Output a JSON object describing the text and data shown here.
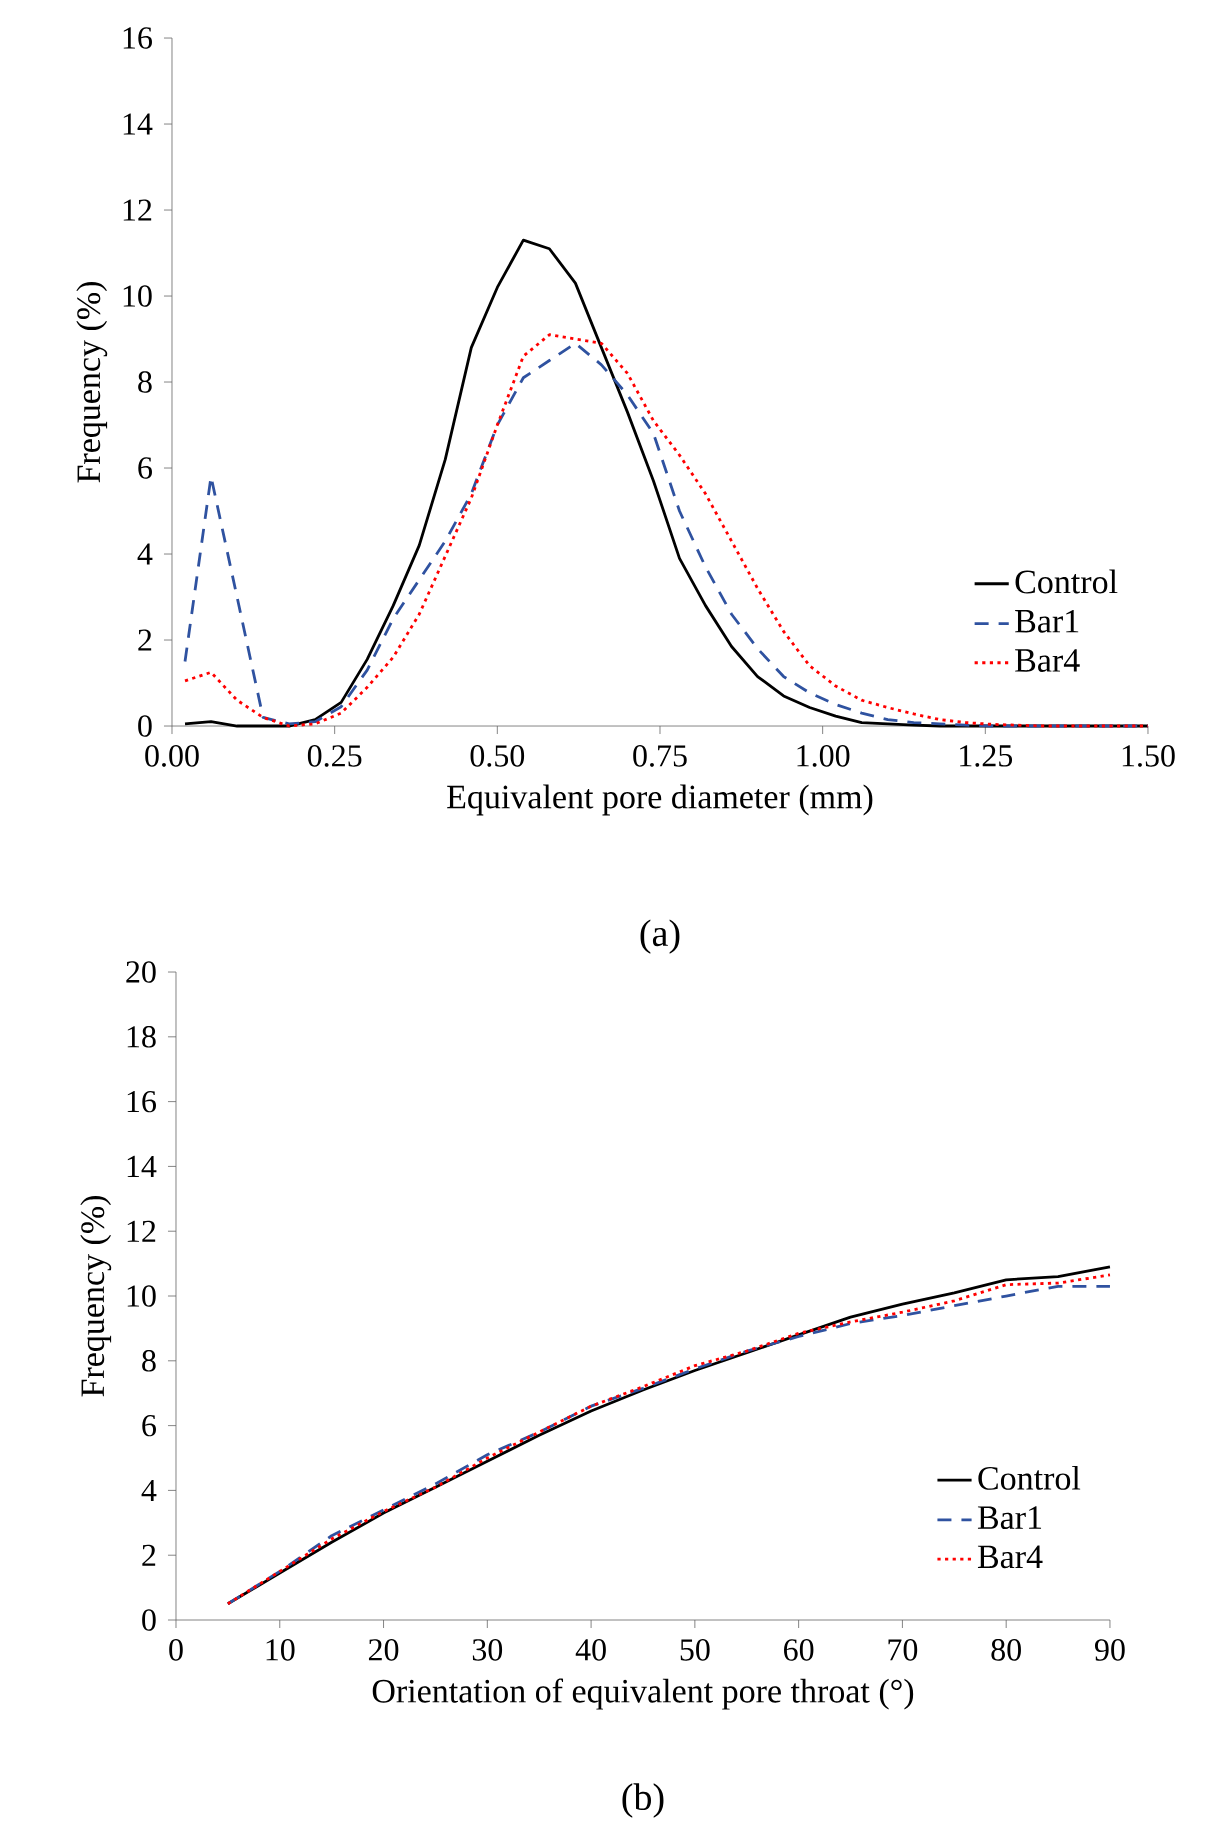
{
  "chart_data": [
    {
      "type": "line",
      "xlabel": "Equivalent pore diameter (mm)",
      "ylabel": "Frequency (%)",
      "annotations": [
        "(a)"
      ],
      "x": [
        0.02,
        0.06,
        0.1,
        0.14,
        0.18,
        0.22,
        0.26,
        0.3,
        0.34,
        0.38,
        0.42,
        0.46,
        0.5,
        0.54,
        0.58,
        0.62,
        0.66,
        0.7,
        0.74,
        0.78,
        0.82,
        0.86,
        0.9,
        0.94,
        0.98,
        1.02,
        1.06,
        1.1,
        1.14,
        1.18,
        1.22,
        1.26,
        1.3,
        1.34,
        1.38,
        1.42,
        1.46,
        1.5
      ],
      "series": [
        {
          "name": "Control",
          "color": "#000000",
          "line_style": "solid",
          "values": [
            0.05,
            0.1,
            0.0,
            0.0,
            0.0,
            0.15,
            0.55,
            1.55,
            2.8,
            4.2,
            6.2,
            8.8,
            10.2,
            11.3,
            11.1,
            10.3,
            8.8,
            7.3,
            5.7,
            3.9,
            2.8,
            1.85,
            1.15,
            0.7,
            0.43,
            0.23,
            0.08,
            0.05,
            0.02,
            0.0,
            0.0,
            0.0,
            0.0,
            0.0,
            0.0,
            0.0,
            0.0,
            0.0
          ]
        },
        {
          "name": "Bar1",
          "color": "#2f52a0",
          "line_style": "dashed",
          "values": [
            1.5,
            5.8,
            3.0,
            0.2,
            0.05,
            0.1,
            0.45,
            1.3,
            2.5,
            3.4,
            4.3,
            5.4,
            7.0,
            8.1,
            8.5,
            8.9,
            8.4,
            7.7,
            6.8,
            5.0,
            3.7,
            2.6,
            1.8,
            1.15,
            0.77,
            0.5,
            0.3,
            0.15,
            0.08,
            0.05,
            0.02,
            0.0,
            0.0,
            0.0,
            0.0,
            0.0,
            0.0,
            0.0
          ]
        },
        {
          "name": "Bar4",
          "color": "#ff0000",
          "line_style": "dotted",
          "values": [
            1.05,
            1.25,
            0.6,
            0.2,
            0.0,
            0.05,
            0.3,
            0.9,
            1.6,
            2.6,
            3.95,
            5.3,
            7.0,
            8.6,
            9.1,
            9.0,
            8.9,
            8.2,
            7.1,
            6.3,
            5.4,
            4.3,
            3.2,
            2.2,
            1.4,
            0.93,
            0.6,
            0.43,
            0.28,
            0.15,
            0.08,
            0.04,
            0.02,
            0.0,
            0.0,
            0.0,
            0.0,
            0.0
          ]
        }
      ],
      "xlim": [
        0,
        1.5
      ],
      "ylim": [
        0,
        16
      ],
      "xticks": [
        {
          "value": 0,
          "label": "0.00"
        },
        {
          "value": 0.25,
          "label": "0.25"
        },
        {
          "value": 0.5,
          "label": "0.50"
        },
        {
          "value": 0.75,
          "label": "0.75"
        },
        {
          "value": 1.0,
          "label": "1.00"
        },
        {
          "value": 1.25,
          "label": "1.25"
        },
        {
          "value": 1.5,
          "label": "1.50"
        }
      ],
      "yticks": [
        0,
        2,
        4,
        6,
        8,
        10,
        12,
        14,
        16
      ],
      "legend": "bottom right"
    },
    {
      "type": "line",
      "xlabel": "Orientation of equivalent pore throat (°)",
      "ylabel": "Frequency (%)",
      "annotations": [
        "(b)"
      ],
      "x": [
        5,
        10,
        15,
        20,
        25,
        30,
        35,
        40,
        45,
        50,
        55,
        60,
        65,
        70,
        75,
        80,
        85,
        90
      ],
      "series": [
        {
          "name": "Control",
          "color": "#000000",
          "line_style": "solid",
          "values": [
            0.5,
            1.45,
            2.4,
            3.3,
            4.1,
            4.9,
            5.7,
            6.45,
            7.1,
            7.7,
            8.25,
            8.8,
            9.35,
            9.75,
            10.1,
            10.5,
            10.6,
            10.9
          ]
        },
        {
          "name": "Bar1",
          "color": "#2f52a0",
          "line_style": "dashed",
          "values": [
            0.5,
            1.5,
            2.6,
            3.4,
            4.2,
            5.1,
            5.8,
            6.6,
            7.15,
            7.75,
            8.3,
            8.75,
            9.15,
            9.4,
            9.7,
            10.0,
            10.3,
            10.3
          ]
        },
        {
          "name": "Bar4",
          "color": "#ff0000",
          "line_style": "dotted",
          "values": [
            0.5,
            1.5,
            2.5,
            3.35,
            4.1,
            5.0,
            5.8,
            6.6,
            7.2,
            7.85,
            8.3,
            8.85,
            9.2,
            9.5,
            9.85,
            10.35,
            10.4,
            10.65
          ]
        }
      ],
      "xlim": [
        0,
        90
      ],
      "ylim": [
        0,
        20
      ],
      "xticks": [
        0,
        10,
        20,
        30,
        40,
        50,
        60,
        70,
        80,
        90
      ],
      "yticks": [
        0,
        2,
        4,
        6,
        8,
        10,
        12,
        14,
        16,
        18,
        20
      ],
      "legend": "bottom right"
    }
  ]
}
